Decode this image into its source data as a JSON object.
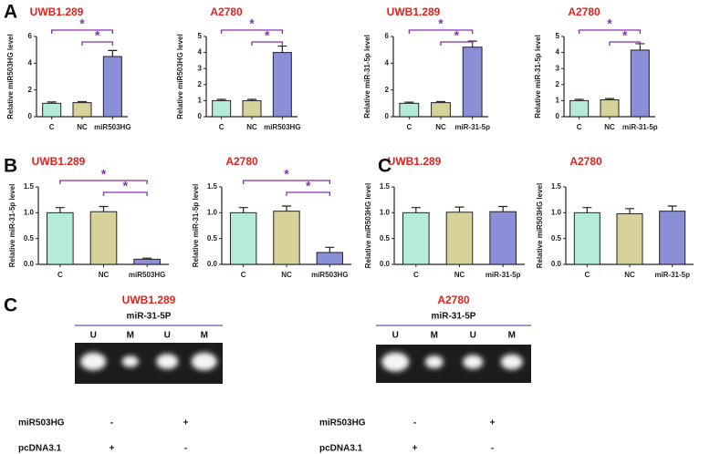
{
  "chart_data": [
    {
      "type": "bar",
      "title": "UWB1.289",
      "ylabel": "Relative miR503HG level",
      "categories": [
        "C",
        "NC",
        "miR503HG"
      ],
      "values": [
        1.0,
        1.05,
        4.5
      ],
      "errors": [
        0.1,
        0.08,
        0.45
      ],
      "colors": [
        "#b4ecd8",
        "#d6d29a",
        "#8a8fd8"
      ],
      "ylim": [
        0,
        6
      ],
      "yticks": [
        0,
        2,
        4,
        6
      ],
      "brackets": [
        {
          "label": "*",
          "from": "C",
          "to": "miR503HG"
        },
        {
          "label": "*",
          "from": "NC",
          "to": "miR503HG"
        }
      ],
      "bracket_color": "#8a2fb0"
    },
    {
      "type": "bar",
      "title": "A2780",
      "ylabel": "Relative miR503HG level",
      "categories": [
        "C",
        "NC",
        "miR503HG"
      ],
      "values": [
        1.0,
        1.0,
        4.0
      ],
      "errors": [
        0.08,
        0.08,
        0.4
      ],
      "colors": [
        "#b4ecd8",
        "#d6d29a",
        "#8a8fd8"
      ],
      "ylim": [
        0,
        5
      ],
      "yticks": [
        0,
        1,
        2,
        3,
        4,
        5
      ],
      "brackets": [
        {
          "label": "*",
          "from": "C",
          "to": "miR503HG"
        },
        {
          "label": "*",
          "from": "NC",
          "to": "miR503HG"
        }
      ],
      "bracket_color": "#8a2fb0"
    },
    {
      "type": "bar",
      "title": "UWB1.289",
      "ylabel": "Relative miR-31-5p level",
      "categories": [
        "C",
        "NC",
        "miR-31-5p"
      ],
      "values": [
        1.0,
        1.05,
        5.2
      ],
      "errors": [
        0.08,
        0.08,
        0.45
      ],
      "colors": [
        "#b4ecd8",
        "#d6d29a",
        "#8a8fd8"
      ],
      "ylim": [
        0,
        6
      ],
      "yticks": [
        0,
        2,
        4,
        6
      ],
      "brackets": [
        {
          "label": "*",
          "from": "C",
          "to": "miR-31-5p"
        },
        {
          "label": "*",
          "from": "NC",
          "to": "miR-31-5p"
        }
      ],
      "bracket_color": "#8a2fb0"
    },
    {
      "type": "bar",
      "title": "A2780",
      "ylabel": "Relative miR-31-5p level",
      "categories": [
        "C",
        "NC",
        "miR-31-5p"
      ],
      "values": [
        1.0,
        1.05,
        4.15
      ],
      "errors": [
        0.08,
        0.08,
        0.4
      ],
      "colors": [
        "#b4ecd8",
        "#d6d29a",
        "#8a8fd8"
      ],
      "ylim": [
        0,
        5
      ],
      "yticks": [
        0,
        1,
        2,
        3,
        4,
        5
      ],
      "brackets": [
        {
          "label": "*",
          "from": "C",
          "to": "miR-31-5p"
        },
        {
          "label": "*",
          "from": "NC",
          "to": "miR-31-5p"
        }
      ],
      "bracket_color": "#8a2fb0"
    },
    {
      "type": "bar",
      "title": "UWB1.289",
      "ylabel": "Relative miR-31-5p level",
      "categories": [
        "C",
        "NC",
        "miR503HG"
      ],
      "values": [
        1.0,
        1.02,
        0.1
      ],
      "errors": [
        0.1,
        0.1,
        0.02
      ],
      "colors": [
        "#b4ecd8",
        "#d6d29a",
        "#8a8fd8"
      ],
      "ylim": [
        0,
        1.5
      ],
      "yticks": [
        {
          "value": 0,
          "label": "0.0"
        },
        0.5,
        {
          "value": 1,
          "label": "1.0"
        },
        1.5
      ],
      "brackets": [
        {
          "label": "*",
          "from": "C",
          "to": "miR503HG"
        },
        {
          "label": "*",
          "from": "NC",
          "to": "miR503HG"
        }
      ],
      "bracket_color": "#8a2fb0"
    },
    {
      "type": "bar",
      "title": "A2780",
      "ylabel": "Relative miR-31-5p level",
      "categories": [
        "C",
        "NC",
        "miR503HG"
      ],
      "values": [
        1.0,
        1.03,
        0.23
      ],
      "errors": [
        0.1,
        0.1,
        0.1
      ],
      "colors": [
        "#b4ecd8",
        "#d6d29a",
        "#8a8fd8"
      ],
      "ylim": [
        0,
        1.5
      ],
      "yticks": [
        {
          "value": 0,
          "label": "0.0"
        },
        0.5,
        {
          "value": 1,
          "label": "1.0"
        },
        1.5
      ],
      "brackets": [
        {
          "label": "*",
          "from": "C",
          "to": "miR503HG"
        },
        {
          "label": "*",
          "from": "NC",
          "to": "miR503HG"
        }
      ],
      "bracket_color": "#8a2fb0"
    },
    {
      "type": "bar",
      "title": "UWB1.289",
      "ylabel": "Relative miR503HG level",
      "categories": [
        "C",
        "NC",
        "miR-31-5p"
      ],
      "values": [
        1.0,
        1.01,
        1.02
      ],
      "errors": [
        0.1,
        0.1,
        0.1
      ],
      "colors": [
        "#b4ecd8",
        "#d6d29a",
        "#8a8fd8"
      ],
      "ylim": [
        0,
        1.5
      ],
      "yticks": [
        {
          "value": 0,
          "label": "0.0"
        },
        0.5,
        {
          "value": 1,
          "label": "1.0"
        },
        1.5
      ],
      "brackets": []
    },
    {
      "type": "bar",
      "title": "A2780",
      "ylabel": "Relative miR503HG level",
      "categories": [
        "C",
        "NC",
        "miR-31-5p"
      ],
      "values": [
        1.0,
        0.98,
        1.03
      ],
      "errors": [
        0.1,
        0.1,
        0.1
      ],
      "colors": [
        "#b4ecd8",
        "#d6d29a",
        "#8a8fd8"
      ],
      "ylim": [
        0,
        1.5
      ],
      "yticks": [
        {
          "value": 0,
          "label": "0.0"
        },
        0.5,
        {
          "value": 1,
          "label": "1.0"
        },
        1.5
      ],
      "brackets": []
    }
  ],
  "panel_labels": [
    "A",
    "B",
    "C",
    "C"
  ],
  "gels": [
    {
      "title": "UWB1.289",
      "probe": "miR-31-5P",
      "lanes": [
        "U",
        "M",
        "U",
        "M"
      ],
      "rows": [
        {
          "label": "miR503HG",
          "marks": [
            "-",
            "+"
          ]
        },
        {
          "label": "pcDNA3.1",
          "marks": [
            "+",
            "-"
          ]
        }
      ]
    },
    {
      "title": "A2780",
      "probe": "miR-31-5P",
      "lanes": [
        "U",
        "M",
        "U",
        "M"
      ],
      "rows": [
        {
          "label": "miR503HG",
          "marks": [
            "-",
            "+"
          ]
        },
        {
          "label": "pcDNA3.1",
          "marks": [
            "+",
            "-"
          ]
        }
      ]
    }
  ]
}
